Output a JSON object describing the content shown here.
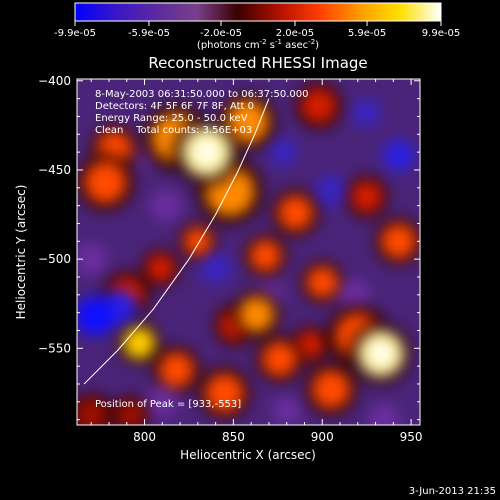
{
  "colorbar": {
    "tick_labels": [
      "-9.9e-05",
      "-5.9e-05",
      "-2.0e-05",
      "2.0e-05",
      "5.9e-05",
      "9.9e-05"
    ],
    "tick_values": [
      -9.9e-05,
      -5.9e-05,
      -2e-05,
      2e-05,
      5.9e-05,
      9.9e-05
    ],
    "range": [
      -9.9e-05,
      9.9e-05
    ],
    "unit_main": "(photons cm",
    "unit_exp1": "-2",
    "unit_mid": " s",
    "unit_exp2": "-1",
    "unit_end": " asec",
    "unit_exp3": "-2",
    "unit_close": ")",
    "colors": [
      "#0000ff",
      "#3a16c8",
      "#5b2aa0",
      "#7a3e8a",
      "#3a0000",
      "#b01000",
      "#ff3c00",
      "#ff9a00",
      "#ffe000",
      "#ffffff"
    ]
  },
  "chart_data": {
    "type": "heatmap",
    "title": "Reconstructed RHESSI Image",
    "xlabel": "Heliocentric X (arcsec)",
    "ylabel": "Heliocentric Y (arcsec)",
    "xlim": [
      762,
      955
    ],
    "ylim": [
      -593,
      -399
    ],
    "xticks": [
      800,
      850,
      900,
      950
    ],
    "yticks": [
      -400,
      -450,
      -500,
      -550
    ],
    "annotations": [
      "8-May-2003 06:31:50.000 to 06:37:50.000",
      "Detectors: 4F 5F 6F 7F 8F, Att 0",
      "Energy Range: 25.0 - 50.0 keV",
      "Clean    Total counts: 3.56E+03"
    ],
    "peak_label": "Position of Peak = [933,-553]",
    "peak": [
      933,
      -553
    ],
    "limb_curve": [
      [
        766,
        -570
      ],
      [
        785,
        -551
      ],
      [
        805,
        -528
      ],
      [
        825,
        -500
      ],
      [
        840,
        -475
      ],
      [
        852,
        -452
      ],
      [
        862,
        -430
      ],
      [
        870,
        -410
      ]
    ],
    "blobs": [
      {
        "x": 835,
        "y": -440,
        "v": 1.0,
        "r": 14
      },
      {
        "x": 818,
        "y": -432,
        "v": 0.55,
        "r": 14
      },
      {
        "x": 858,
        "y": -423,
        "v": 0.6,
        "r": 12
      },
      {
        "x": 848,
        "y": -462,
        "v": 0.55,
        "r": 14
      },
      {
        "x": 933,
        "y": -553,
        "v": 1.0,
        "r": 13
      },
      {
        "x": 920,
        "y": -543,
        "v": 0.5,
        "r": 13
      },
      {
        "x": 905,
        "y": -573,
        "v": 0.45,
        "r": 11
      },
      {
        "x": 797,
        "y": -547,
        "v": 0.7,
        "r": 9
      },
      {
        "x": 818,
        "y": -562,
        "v": 0.45,
        "r": 10
      },
      {
        "x": 778,
        "y": -457,
        "v": 0.5,
        "r": 12
      },
      {
        "x": 783,
        "y": -438,
        "v": 0.45,
        "r": 10
      },
      {
        "x": 885,
        "y": -474,
        "v": 0.45,
        "r": 10
      },
      {
        "x": 868,
        "y": -498,
        "v": 0.5,
        "r": 9
      },
      {
        "x": 863,
        "y": -531,
        "v": 0.55,
        "r": 10
      },
      {
        "x": 876,
        "y": -556,
        "v": 0.45,
        "r": 10
      },
      {
        "x": 845,
        "y": -575,
        "v": 0.5,
        "r": 11
      },
      {
        "x": 851,
        "y": -537,
        "v": 0.4,
        "r": 9
      },
      {
        "x": 830,
        "y": -490,
        "v": 0.45,
        "r": 8
      },
      {
        "x": 900,
        "y": -513,
        "v": 0.45,
        "r": 9
      },
      {
        "x": 943,
        "y": -490,
        "v": 0.45,
        "r": 10
      },
      {
        "x": 898,
        "y": -414,
        "v": 0.4,
        "r": 10
      },
      {
        "x": 925,
        "y": -465,
        "v": 0.35,
        "r": 9
      },
      {
        "x": 893,
        "y": -548,
        "v": 0.35,
        "r": 8
      },
      {
        "x": 770,
        "y": -587,
        "v": 0.3,
        "r": 9
      },
      {
        "x": 792,
        "y": -587,
        "v": 0.3,
        "r": 8
      },
      {
        "x": 790,
        "y": -520,
        "v": 0.4,
        "r": 10
      },
      {
        "x": 809,
        "y": -505,
        "v": 0.35,
        "r": 8
      },
      {
        "x": 772,
        "y": -532,
        "v": -1.0,
        "r": 11
      },
      {
        "x": 786,
        "y": -527,
        "v": -0.8,
        "r": 10
      },
      {
        "x": 840,
        "y": -505,
        "v": -0.55,
        "r": 9
      },
      {
        "x": 943,
        "y": -442,
        "v": -0.75,
        "r": 9
      },
      {
        "x": 925,
        "y": -418,
        "v": -0.5,
        "r": 8
      },
      {
        "x": 905,
        "y": -462,
        "v": -0.55,
        "r": 9
      },
      {
        "x": 812,
        "y": -470,
        "v": -0.45,
        "r": 9
      },
      {
        "x": 878,
        "y": -440,
        "v": -0.5,
        "r": 8
      },
      {
        "x": 918,
        "y": -520,
        "v": -0.45,
        "r": 9
      },
      {
        "x": 810,
        "y": -580,
        "v": -0.45,
        "r": 9
      },
      {
        "x": 935,
        "y": -590,
        "v": -0.45,
        "r": 9
      },
      {
        "x": 800,
        "y": -440,
        "v": -0.35,
        "r": 8
      },
      {
        "x": 770,
        "y": -500,
        "v": -0.45,
        "r": 9
      },
      {
        "x": 880,
        "y": -585,
        "v": -0.4,
        "r": 8
      },
      {
        "x": 870,
        "y": -520,
        "v": -0.4,
        "r": 8
      }
    ]
  },
  "footer": {
    "timestamp": "3-Jun-2013 21:35"
  }
}
